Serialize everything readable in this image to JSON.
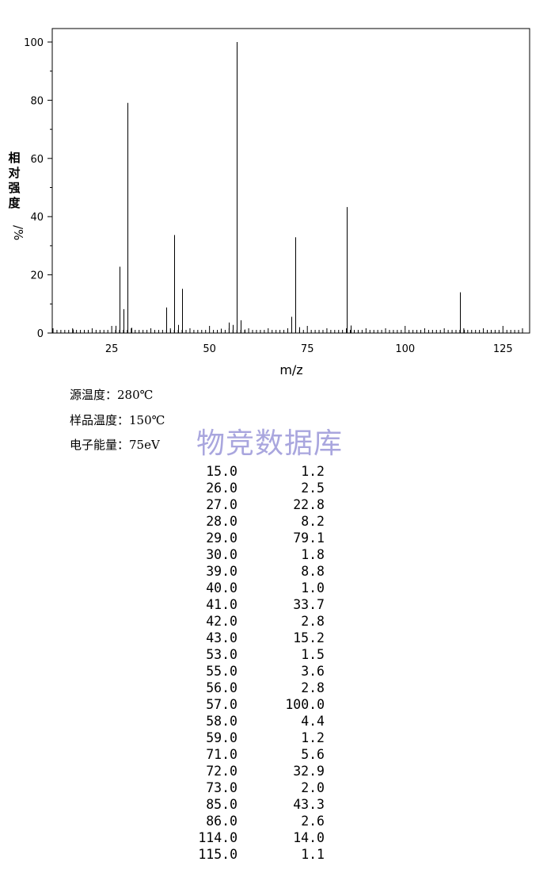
{
  "chart_data": {
    "type": "bar",
    "xlabel": "m/z",
    "ylabel": "相对强度/%",
    "xlim": [
      10,
      130
    ],
    "ylim": [
      0,
      105
    ],
    "xticks": [
      25,
      50,
      75,
      100,
      125
    ],
    "yticks": [
      0,
      20,
      40,
      60,
      80,
      100
    ],
    "x": [
      15,
      26,
      27,
      28,
      29,
      30,
      39,
      40,
      41,
      42,
      43,
      53,
      55,
      56,
      57,
      58,
      59,
      71,
      72,
      73,
      85,
      86,
      114,
      115
    ],
    "values": [
      1.2,
      2.5,
      22.8,
      8.2,
      79.1,
      1.8,
      8.8,
      1.0,
      33.7,
      2.8,
      15.2,
      1.5,
      3.6,
      2.8,
      100.0,
      4.4,
      1.2,
      5.6,
      32.9,
      2.0,
      43.3,
      2.6,
      14.0,
      1.1
    ]
  },
  "conditions": {
    "source_temp": "源温度：280℃",
    "sample_temp": "样品温度：150℃",
    "electron_energy": "电子能量：75eV"
  },
  "watermark": "物竞数据库",
  "peak_table": [
    [
      "15.0",
      "1.2"
    ],
    [
      "26.0",
      "2.5"
    ],
    [
      "27.0",
      "22.8"
    ],
    [
      "28.0",
      "8.2"
    ],
    [
      "29.0",
      "79.1"
    ],
    [
      "30.0",
      "1.8"
    ],
    [
      "39.0",
      "8.8"
    ],
    [
      "40.0",
      "1.0"
    ],
    [
      "41.0",
      "33.7"
    ],
    [
      "42.0",
      "2.8"
    ],
    [
      "43.0",
      "15.2"
    ],
    [
      "53.0",
      "1.5"
    ],
    [
      "55.0",
      "3.6"
    ],
    [
      "56.0",
      "2.8"
    ],
    [
      "57.0",
      "100.0"
    ],
    [
      "58.0",
      "4.4"
    ],
    [
      "59.0",
      "1.2"
    ],
    [
      "71.0",
      "5.6"
    ],
    [
      "72.0",
      "32.9"
    ],
    [
      "73.0",
      "2.0"
    ],
    [
      "85.0",
      "43.3"
    ],
    [
      "86.0",
      "2.6"
    ],
    [
      "114.0",
      "14.0"
    ],
    [
      "115.0",
      "1.1"
    ]
  ]
}
